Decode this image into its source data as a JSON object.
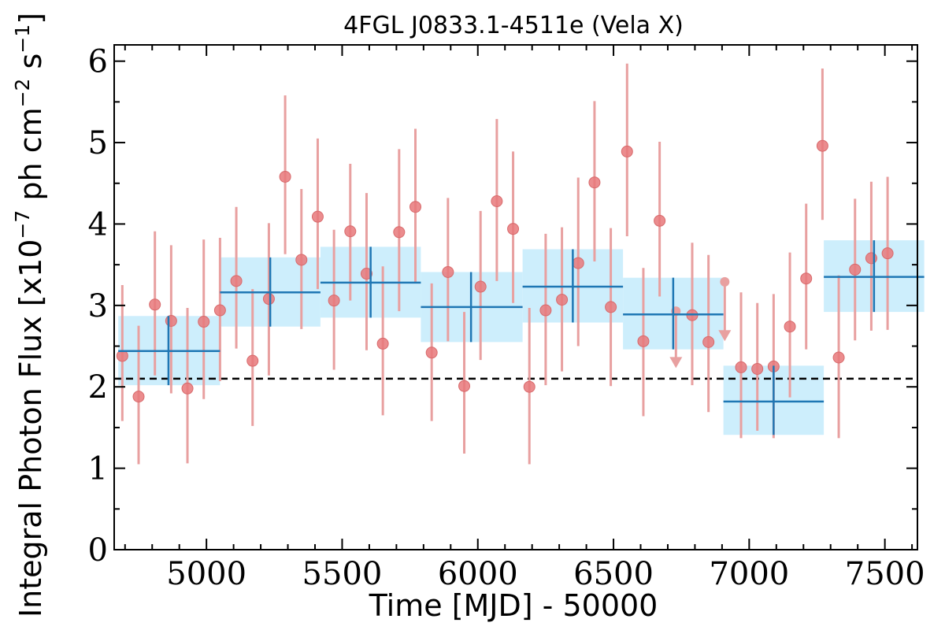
{
  "chart_data": {
    "type": "scatter",
    "title": "4FGL J0833.1-4511e (Vela X)",
    "xlabel": "Time [MJD] - 50000",
    "ylabel": {
      "prefix": "Integral Photon Flux [x10",
      "exp1": "−7",
      "mid": " ph cm",
      "exp2": "−2",
      "mid2": " s",
      "exp3": "−1",
      "suffix": "]"
    },
    "xlim": [
      4660,
      7620
    ],
    "ylim": [
      0,
      6.2
    ],
    "x_ticks": [
      5000,
      5500,
      6000,
      6500,
      7000,
      7500
    ],
    "x_tick_labels": [
      "5000",
      "5500",
      "6000",
      "6500",
      "7000",
      "7500"
    ],
    "y_ticks": [
      0,
      1,
      2,
      3,
      4,
      5,
      6
    ],
    "y_tick_labels": [
      "0",
      "1",
      "2",
      "3",
      "4",
      "5",
      "6"
    ],
    "grid": false,
    "reference_line": {
      "y": 2.1,
      "style": "dashed",
      "color": "#000000"
    },
    "colors": {
      "points": "#e8787a",
      "errorbars": "#e8a0a0",
      "bins": "#1f77b4",
      "bin_fill": "#cdeefc"
    },
    "series": [
      {
        "kind": "monthly_points",
        "points": [
          {
            "x": 4690,
            "y": 2.38,
            "ylo": 1.58,
            "yhi": 3.25
          },
          {
            "x": 4750,
            "y": 1.88,
            "ylo": 1.05,
            "yhi": 2.75
          },
          {
            "x": 4810,
            "y": 3.01,
            "ylo": 2.14,
            "yhi": 3.91
          },
          {
            "x": 4870,
            "y": 2.81,
            "ylo": 1.92,
            "yhi": 3.74
          },
          {
            "x": 4930,
            "y": 1.98,
            "ylo": 1.06,
            "yhi": 2.97
          },
          {
            "x": 4990,
            "y": 2.8,
            "ylo": 1.85,
            "yhi": 3.81
          },
          {
            "x": 5050,
            "y": 2.94,
            "ylo": 2.07,
            "yhi": 3.83
          },
          {
            "x": 5110,
            "y": 3.3,
            "ylo": 2.47,
            "yhi": 4.21
          },
          {
            "x": 5170,
            "y": 2.32,
            "ylo": 1.52,
            "yhi": 3.2
          },
          {
            "x": 5230,
            "y": 3.08,
            "ylo": 2.14,
            "yhi": 4.01
          },
          {
            "x": 5290,
            "y": 4.58,
            "ylo": 3.63,
            "yhi": 5.58
          },
          {
            "x": 5350,
            "y": 3.56,
            "ylo": 2.71,
            "yhi": 4.43
          },
          {
            "x": 5410,
            "y": 4.09,
            "ylo": 3.2,
            "yhi": 5.05
          },
          {
            "x": 5470,
            "y": 3.06,
            "ylo": 2.21,
            "yhi": 3.93
          },
          {
            "x": 5530,
            "y": 3.91,
            "ylo": 3.06,
            "yhi": 4.74
          },
          {
            "x": 5590,
            "y": 3.39,
            "ylo": 2.45,
            "yhi": 4.38
          },
          {
            "x": 5650,
            "y": 2.53,
            "ylo": 1.65,
            "yhi": 3.48
          },
          {
            "x": 5710,
            "y": 3.9,
            "ylo": 2.93,
            "yhi": 4.92
          },
          {
            "x": 5770,
            "y": 4.21,
            "ylo": 3.27,
            "yhi": 5.17
          },
          {
            "x": 5830,
            "y": 2.42,
            "ylo": 1.58,
            "yhi": 3.27
          },
          {
            "x": 5890,
            "y": 3.41,
            "ylo": 2.56,
            "yhi": 4.32
          },
          {
            "x": 5950,
            "y": 2.01,
            "ylo": 1.18,
            "yhi": 2.92
          },
          {
            "x": 6010,
            "y": 3.23,
            "ylo": 2.33,
            "yhi": 4.16
          },
          {
            "x": 6070,
            "y": 4.28,
            "ylo": 3.3,
            "yhi": 5.29
          },
          {
            "x": 6130,
            "y": 3.94,
            "ylo": 3.03,
            "yhi": 4.89
          },
          {
            "x": 6190,
            "y": 2.0,
            "ylo": 1.05,
            "yhi": 2.97
          },
          {
            "x": 6250,
            "y": 2.94,
            "ylo": 2.02,
            "yhi": 3.88
          },
          {
            "x": 6310,
            "y": 3.07,
            "ylo": 2.19,
            "yhi": 3.96
          },
          {
            "x": 6370,
            "y": 3.52,
            "ylo": 2.5,
            "yhi": 4.57
          },
          {
            "x": 6430,
            "y": 4.51,
            "ylo": 3.54,
            "yhi": 5.51
          },
          {
            "x": 6490,
            "y": 2.98,
            "ylo": 2.01,
            "yhi": 3.95
          },
          {
            "x": 6550,
            "y": 4.89,
            "ylo": 3.85,
            "yhi": 5.97
          },
          {
            "x": 6610,
            "y": 2.56,
            "ylo": 1.64,
            "yhi": 3.46
          },
          {
            "x": 6670,
            "y": 4.04,
            "ylo": 3.11,
            "yhi": 5.01
          },
          {
            "x": 6730,
            "y": 2.93,
            "ylo": 2.25,
            "yhi": 2.93,
            "upper_limit": true
          },
          {
            "x": 6790,
            "y": 2.88,
            "ylo": 2.02,
            "yhi": 3.77
          },
          {
            "x": 6850,
            "y": 2.55,
            "ylo": 1.69,
            "yhi": 3.62
          },
          {
            "x": 6910,
            "y": 3.29,
            "ylo": 2.58,
            "yhi": 3.29,
            "upper_limit": true
          },
          {
            "x": 6970,
            "y": 2.24,
            "ylo": 1.37,
            "yhi": 3.16
          },
          {
            "x": 7030,
            "y": 2.22,
            "ylo": 1.46,
            "yhi": 3.03
          },
          {
            "x": 7090,
            "y": 2.25,
            "ylo": 1.37,
            "yhi": 3.14
          },
          {
            "x": 7150,
            "y": 2.74,
            "ylo": 1.87,
            "yhi": 3.65
          },
          {
            "x": 7210,
            "y": 3.33,
            "ylo": 2.46,
            "yhi": 4.25
          },
          {
            "x": 7270,
            "y": 4.96,
            "ylo": 4.05,
            "yhi": 5.91
          },
          {
            "x": 7330,
            "y": 2.36,
            "ylo": 1.37,
            "yhi": 3.37
          },
          {
            "x": 7390,
            "y": 3.44,
            "ylo": 2.57,
            "yhi": 4.31
          },
          {
            "x": 7450,
            "y": 3.58,
            "ylo": 2.69,
            "yhi": 4.52
          },
          {
            "x": 7510,
            "y": 3.64,
            "ylo": 2.7,
            "yhi": 4.58
          }
        ]
      },
      {
        "kind": "yearly_bins",
        "bins": [
          {
            "x0": 4675,
            "x1": 5050,
            "xc": 4860,
            "y": 2.44,
            "ylo": 2.02,
            "yhi": 2.87
          },
          {
            "x0": 5050,
            "x1": 5420,
            "xc": 5235,
            "y": 3.16,
            "ylo": 2.74,
            "yhi": 3.59
          },
          {
            "x0": 5420,
            "x1": 5790,
            "xc": 5605,
            "y": 3.28,
            "ylo": 2.85,
            "yhi": 3.72
          },
          {
            "x0": 5790,
            "x1": 6165,
            "xc": 5975,
            "y": 2.98,
            "ylo": 2.55,
            "yhi": 3.41
          },
          {
            "x0": 6165,
            "x1": 6535,
            "xc": 6350,
            "y": 3.23,
            "ylo": 2.79,
            "yhi": 3.69
          },
          {
            "x0": 6535,
            "x1": 6905,
            "xc": 6720,
            "y": 2.89,
            "ylo": 2.46,
            "yhi": 3.34
          },
          {
            "x0": 6905,
            "x1": 7275,
            "xc": 7090,
            "y": 1.82,
            "ylo": 1.41,
            "yhi": 2.26
          },
          {
            "x0": 7275,
            "x1": 7645,
            "xc": 7460,
            "y": 3.35,
            "ylo": 2.92,
            "yhi": 3.8
          }
        ]
      }
    ]
  }
}
